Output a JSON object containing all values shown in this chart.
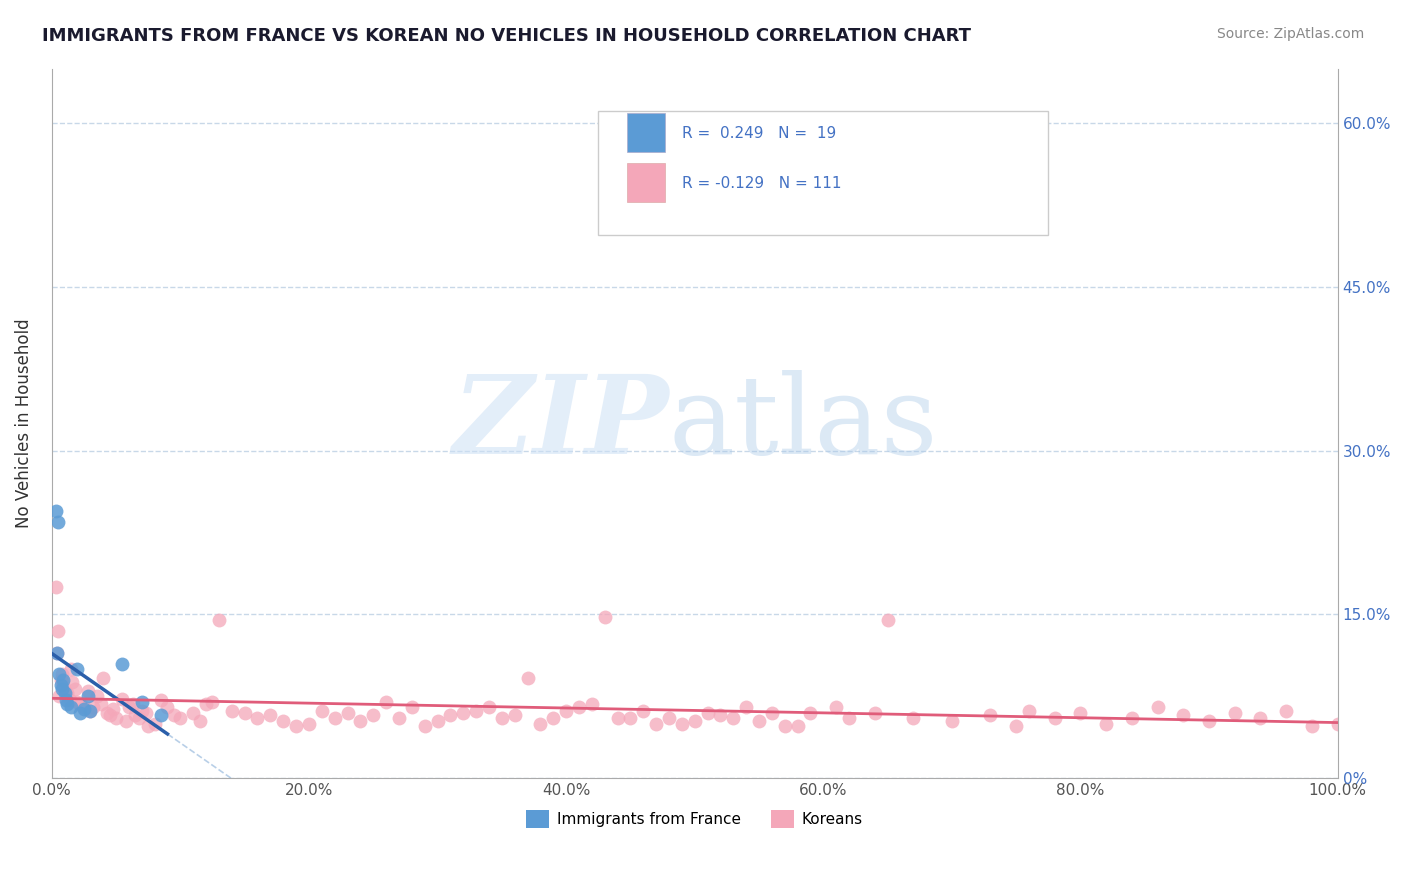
{
  "title": "IMMIGRANTS FROM FRANCE VS KOREAN NO VEHICLES IN HOUSEHOLD CORRELATION CHART",
  "source": "Source: ZipAtlas.com",
  "ylabel_label": "No Vehicles in Household",
  "xlim": [
    0.0,
    1.0
  ],
  "ylim": [
    0.0,
    0.65
  ],
  "xticks": [
    0.0,
    0.2,
    0.4,
    0.6,
    0.8,
    1.0
  ],
  "xtick_labels": [
    "0.0%",
    "20.0%",
    "40.0%",
    "60.0%",
    "80.0%",
    "100.0%"
  ],
  "ytick_labels_right": [
    "0%",
    "15.0%",
    "30.0%",
    "45.0%",
    "60.0%"
  ],
  "yticks_right": [
    0.0,
    0.15,
    0.3,
    0.45,
    0.6
  ],
  "blue_color": "#5b9bd5",
  "pink_color": "#f4a7b9",
  "blue_line_color": "#2b5faa",
  "pink_line_color": "#e05c7a",
  "grid_color": "#c8d8e8",
  "france_x": [
    0.003,
    0.004,
    0.005,
    0.006,
    0.007,
    0.008,
    0.009,
    0.01,
    0.011,
    0.012,
    0.015,
    0.02,
    0.022,
    0.025,
    0.028,
    0.03,
    0.055,
    0.07,
    0.085
  ],
  "france_y": [
    0.245,
    0.115,
    0.235,
    0.095,
    0.085,
    0.082,
    0.09,
    0.078,
    0.072,
    0.068,
    0.065,
    0.1,
    0.06,
    0.063,
    0.075,
    0.062,
    0.105,
    0.07,
    0.058
  ],
  "korean_x": [
    0.003,
    0.004,
    0.005,
    0.006,
    0.007,
    0.008,
    0.009,
    0.01,
    0.012,
    0.014,
    0.015,
    0.016,
    0.018,
    0.02,
    0.022,
    0.025,
    0.028,
    0.03,
    0.032,
    0.035,
    0.038,
    0.04,
    0.043,
    0.045,
    0.048,
    0.05,
    0.055,
    0.058,
    0.06,
    0.063,
    0.065,
    0.068,
    0.07,
    0.073,
    0.075,
    0.08,
    0.085,
    0.09,
    0.095,
    0.1,
    0.11,
    0.115,
    0.12,
    0.125,
    0.13,
    0.14,
    0.15,
    0.16,
    0.17,
    0.18,
    0.19,
    0.2,
    0.21,
    0.22,
    0.23,
    0.24,
    0.25,
    0.26,
    0.27,
    0.28,
    0.29,
    0.3,
    0.32,
    0.34,
    0.35,
    0.36,
    0.37,
    0.38,
    0.39,
    0.4,
    0.41,
    0.42,
    0.43,
    0.45,
    0.46,
    0.48,
    0.49,
    0.5,
    0.51,
    0.52,
    0.53,
    0.54,
    0.55,
    0.56,
    0.57,
    0.58,
    0.59,
    0.61,
    0.62,
    0.64,
    0.65,
    0.67,
    0.7,
    0.73,
    0.75,
    0.76,
    0.78,
    0.8,
    0.82,
    0.84,
    0.86,
    0.88,
    0.9,
    0.92,
    0.94,
    0.96,
    0.98,
    1.0,
    0.31,
    0.33,
    0.44,
    0.47
  ],
  "korean_y": [
    0.175,
    0.115,
    0.135,
    0.075,
    0.09,
    0.095,
    0.085,
    0.08,
    0.078,
    0.072,
    0.1,
    0.088,
    0.082,
    0.07,
    0.068,
    0.065,
    0.08,
    0.062,
    0.065,
    0.075,
    0.068,
    0.092,
    0.06,
    0.058,
    0.063,
    0.055,
    0.073,
    0.052,
    0.065,
    0.068,
    0.058,
    0.055,
    0.062,
    0.06,
    0.048,
    0.05,
    0.072,
    0.065,
    0.058,
    0.055,
    0.06,
    0.052,
    0.068,
    0.07,
    0.145,
    0.062,
    0.06,
    0.055,
    0.058,
    0.052,
    0.048,
    0.05,
    0.062,
    0.055,
    0.06,
    0.052,
    0.058,
    0.07,
    0.055,
    0.065,
    0.048,
    0.052,
    0.06,
    0.065,
    0.055,
    0.058,
    0.092,
    0.05,
    0.055,
    0.062,
    0.065,
    0.068,
    0.148,
    0.055,
    0.062,
    0.055,
    0.05,
    0.052,
    0.06,
    0.058,
    0.055,
    0.065,
    0.052,
    0.06,
    0.048,
    0.048,
    0.06,
    0.065,
    0.055,
    0.06,
    0.145,
    0.055,
    0.052,
    0.058,
    0.048,
    0.062,
    0.055,
    0.06,
    0.05,
    0.055,
    0.065,
    0.058,
    0.052,
    0.06,
    0.055,
    0.062,
    0.048,
    0.05,
    0.058,
    0.062,
    0.055,
    0.05
  ]
}
